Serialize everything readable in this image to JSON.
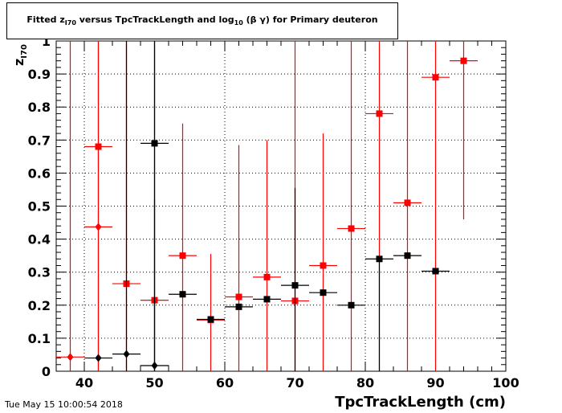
{
  "title": {
    "part1": "Fitted  z",
    "sub1": "I70",
    "part2": " versus TpcTrackLength and log",
    "sub2": "10",
    "part3": " (β γ) for Primary deuteron"
  },
  "timestamp": "Tue May 15 10:00:54 2018",
  "chart_data": {
    "type": "scatter",
    "title": "Fitted z_I70 versus TpcTrackLength and log10(βγ) for Primary deuteron",
    "xlabel": "TpcTrackLength (cm)",
    "ylabel_main": "z",
    "ylabel_sub": "I70",
    "xlim": [
      36,
      100
    ],
    "ylim": [
      0,
      1
    ],
    "grid": true,
    "xticks": [
      40,
      50,
      60,
      70,
      80,
      90,
      100
    ],
    "yticks": [
      0,
      0.1,
      0.2,
      0.3,
      0.4,
      0.5,
      0.6,
      0.7,
      0.8,
      0.9,
      1
    ],
    "ytick_labels": [
      "0",
      "0.1",
      "0.2",
      "0.3",
      "0.4",
      "0.5",
      "0.6",
      "0.7",
      "0.8",
      "0.9",
      "1"
    ],
    "series": [
      {
        "color": "#ff0000",
        "marker": "square",
        "points": [
          {
            "x": 42,
            "y": 0.68,
            "xerr": 2,
            "ylo": 0,
            "yhi": 1
          },
          {
            "x": 46,
            "y": 0.265,
            "xerr": 2,
            "ylo": 0,
            "yhi": 1
          },
          {
            "x": 50,
            "y": 0.215,
            "xerr": 2,
            "ylo": 0,
            "yhi": 0.52
          },
          {
            "x": 54,
            "y": 0.35,
            "xerr": 2,
            "ylo": 0,
            "yhi": 0.75
          },
          {
            "x": 58,
            "y": 0.155,
            "xerr": 2,
            "ylo": 0,
            "yhi": 0.355
          },
          {
            "x": 62,
            "y": 0.225,
            "xerr": 2,
            "ylo": 0,
            "yhi": 0.685
          },
          {
            "x": 66,
            "y": 0.285,
            "xerr": 2,
            "ylo": 0,
            "yhi": 0.7
          },
          {
            "x": 70,
            "y": 0.213,
            "xerr": 2,
            "ylo": 0,
            "yhi": 1
          },
          {
            "x": 74,
            "y": 0.32,
            "xerr": 2,
            "ylo": 0,
            "yhi": 0.72
          },
          {
            "x": 78,
            "y": 0.432,
            "xerr": 2,
            "ylo": 0,
            "yhi": 1
          },
          {
            "x": 82,
            "y": 0.78,
            "xerr": 2,
            "ylo": 0,
            "yhi": 1
          },
          {
            "x": 86,
            "y": 0.51,
            "xerr": 2,
            "ylo": 0,
            "yhi": 1
          },
          {
            "x": 90,
            "y": 0.89,
            "xerr": 2,
            "ylo": 0,
            "yhi": 1
          },
          {
            "x": 94,
            "y": 0.94,
            "xerr": 2,
            "ylo": 0.46,
            "yhi": 1
          }
        ]
      },
      {
        "color": "#ff0000",
        "marker": "diamond",
        "points": [
          {
            "x": 38,
            "y": 0.043,
            "xerr": 2,
            "ylo": 0,
            "yhi": 1
          },
          {
            "x": 42,
            "y": 0.437,
            "xerr": 2,
            "ylo": 0,
            "yhi": 1
          }
        ]
      },
      {
        "color": "#000000",
        "marker": "square",
        "points": [
          {
            "x": 50,
            "y": 0.69,
            "xerr": 2,
            "ylo": 0,
            "yhi": 1
          },
          {
            "x": 54,
            "y": 0.233,
            "xerr": 2,
            "ylo": 0.233,
            "yhi": 0.233
          },
          {
            "x": 58,
            "y": 0.157,
            "xerr": 2,
            "ylo": 0.157,
            "yhi": 0.157
          },
          {
            "x": 62,
            "y": 0.195,
            "xerr": 2,
            "ylo": 0.195,
            "yhi": 0.195
          },
          {
            "x": 66,
            "y": 0.218,
            "xerr": 2,
            "ylo": 0.218,
            "yhi": 0.218
          },
          {
            "x": 70,
            "y": 0.26,
            "xerr": 2,
            "ylo": 0,
            "yhi": 0.555
          },
          {
            "x": 74,
            "y": 0.238,
            "xerr": 2,
            "ylo": 0.238,
            "yhi": 0.238
          },
          {
            "x": 78,
            "y": 0.2,
            "xerr": 2,
            "ylo": 0.2,
            "yhi": 0.2
          },
          {
            "x": 82,
            "y": 0.34,
            "xerr": 2,
            "ylo": 0,
            "yhi": 0.34
          },
          {
            "x": 86,
            "y": 0.35,
            "xerr": 2,
            "ylo": 0.35,
            "yhi": 0.35
          },
          {
            "x": 90,
            "y": 0.303,
            "xerr": 2,
            "ylo": 0.303,
            "yhi": 0.303
          }
        ]
      },
      {
        "color": "#000000",
        "marker": "diamond",
        "points": [
          {
            "x": 42,
            "y": 0.04,
            "xerr": 2,
            "ylo": 0.04,
            "yhi": 0.04
          },
          {
            "x": 46,
            "y": 0.052,
            "xerr": 2,
            "ylo": 0,
            "yhi": 1
          },
          {
            "x": 50,
            "y": 0.017,
            "xerr": 2,
            "ylo": 0,
            "yhi": 1
          }
        ]
      }
    ]
  }
}
